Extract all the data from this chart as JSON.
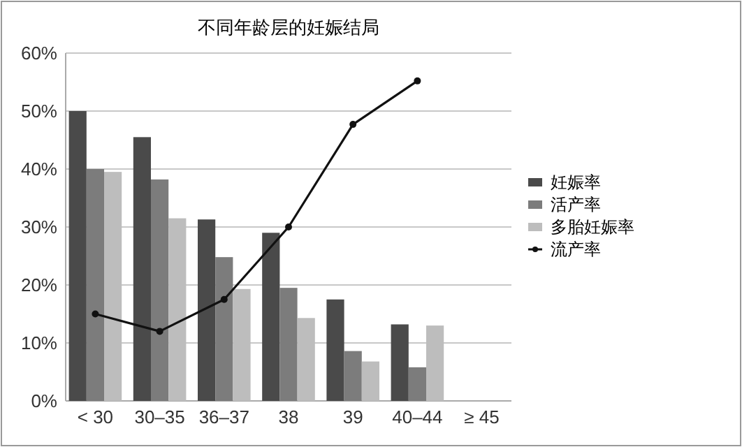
{
  "chart_data": {
    "type": "bar",
    "title": "不同年龄层的妊娠结局",
    "categories": [
      "< 30",
      "30–35",
      "36–37",
      "38",
      "39",
      "40–44",
      "≥ 45"
    ],
    "series": [
      {
        "name": "妊娠率",
        "color": "#4a4a4a",
        "values": [
          50,
          45.5,
          31.3,
          29,
          17.5,
          13.2,
          null
        ]
      },
      {
        "name": "活产率",
        "color": "#7c7c7c",
        "values": [
          40,
          38.2,
          24.8,
          19.5,
          8.6,
          5.8,
          null
        ]
      },
      {
        "name": "多胎妊娠率",
        "color": "#bdbdbd",
        "values": [
          39.5,
          31.5,
          19.3,
          14.3,
          6.8,
          13,
          null
        ]
      },
      {
        "name": "流产率",
        "type": "line",
        "color": "#111111",
        "marker": "circle",
        "values": [
          15,
          12,
          17.5,
          30,
          47.7,
          55.2,
          null
        ]
      }
    ],
    "ylim": [
      0,
      60
    ],
    "yticks": [
      {
        "value": 0,
        "label": "0%"
      },
      {
        "value": 10,
        "label": "10%"
      },
      {
        "value": 20,
        "label": "20%"
      },
      {
        "value": 30,
        "label": "30%"
      },
      {
        "value": 40,
        "label": "40%"
      },
      {
        "value": 50,
        "label": "50%"
      },
      {
        "value": 60,
        "label": "60%"
      }
    ],
    "grid": "y",
    "legend": "right"
  }
}
